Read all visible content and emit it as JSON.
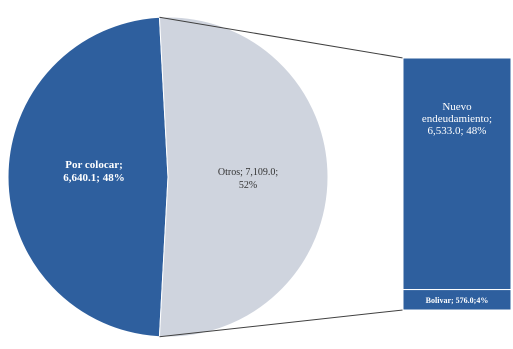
{
  "chart_data": {
    "type": "pie",
    "subtype": "pie-of-pie-bar",
    "pie": {
      "slices": [
        {
          "name": "Por colocar",
          "value": 6640.1,
          "percent": 48,
          "label": "Por colocar; 6,640.1; 48%",
          "color": "#2e5f9e"
        },
        {
          "name": "Otros",
          "value": 7109.0,
          "percent": 52,
          "label": "Otros; 7,109.0; 52%",
          "color": "#cfd4de"
        }
      ]
    },
    "breakout_bar": {
      "parent": "Otros",
      "segments": [
        {
          "name": "Nuevo endeudamiento",
          "value": 6533.0,
          "percent": 48,
          "label": "Nuevo endeudamiento; 6,533.0; 48%",
          "color": "#2e5f9e"
        },
        {
          "name": "Bolivar",
          "value": 576.0,
          "percent": 4,
          "label": "Bolivar; 576.0; 4%",
          "color": "#2e5f9e"
        }
      ]
    },
    "legend": "none"
  }
}
